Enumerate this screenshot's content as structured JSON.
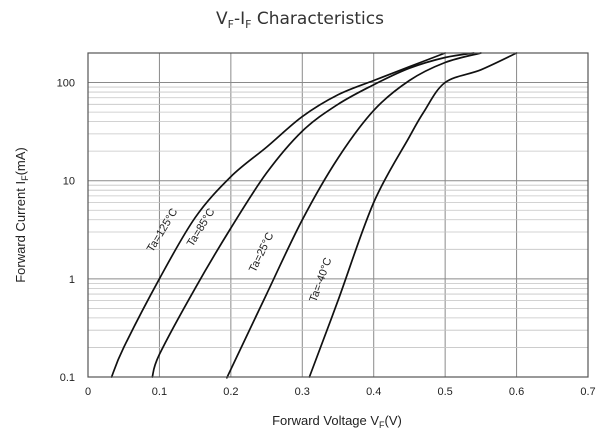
{
  "chart_data": {
    "type": "line",
    "title": {
      "main": "V",
      "sub1": "F",
      "dash": "-I",
      "sub2": "F",
      "rest": " Characteristics"
    },
    "xlabel": {
      "main": "Forward Voltage  V",
      "sub": "F",
      "rest": "(V)"
    },
    "ylabel": {
      "main": "Forward Current  I",
      "sub": "F",
      "rest": "(mA)"
    },
    "x_scale": "linear",
    "y_scale": "log",
    "xlim": [
      0,
      0.7
    ],
    "ylim": [
      0.1,
      200
    ],
    "x_ticks": [
      0,
      0.1,
      0.2,
      0.3,
      0.4,
      0.5,
      0.6,
      0.7
    ],
    "x_tick_labels": [
      "0",
      "0.1",
      "0.2",
      "0.3",
      "0.4",
      "0.5",
      "0.6",
      "0.7"
    ],
    "y_ticks": [
      0.1,
      1,
      10,
      100
    ],
    "y_tick_labels": [
      "0.1",
      "1",
      "10",
      "100"
    ],
    "grid": true,
    "colors": {
      "curve": "#111111",
      "grid_major": "#8a8a8a",
      "grid_minor": "#c4c4c4",
      "border": "#555555"
    },
    "series": [
      {
        "name": "Ta=125°C",
        "label_prefix": "Ta=125",
        "label_unit": "°C",
        "x": [
          0.033,
          0.05,
          0.1,
          0.15,
          0.2,
          0.25,
          0.3,
          0.35,
          0.4,
          0.45,
          0.5
        ],
        "y": [
          0.1,
          0.2,
          1,
          4.2,
          11,
          22,
          45,
          75,
          105,
          145,
          200
        ]
      },
      {
        "name": "Ta=85°C",
        "label_prefix": "Ta=85",
        "label_unit": "°C",
        "x": [
          0.09,
          0.1,
          0.15,
          0.2,
          0.25,
          0.3,
          0.35,
          0.4,
          0.45,
          0.5,
          0.54
        ],
        "y": [
          0.1,
          0.17,
          0.8,
          3.3,
          12,
          32,
          60,
          95,
          140,
          180,
          200
        ]
      },
      {
        "name": "Ta=25°C",
        "label_prefix": "Ta=25",
        "label_unit": "°C",
        "x": [
          0.195,
          0.2,
          0.25,
          0.3,
          0.35,
          0.4,
          0.45,
          0.5,
          0.55
        ],
        "y": [
          0.1,
          0.12,
          0.7,
          4,
          17,
          52,
          105,
          160,
          200
        ]
      },
      {
        "name": "Ta=-40°C",
        "label_prefix": "Ta=-40",
        "label_unit": "°C",
        "x": [
          0.31,
          0.35,
          0.4,
          0.45,
          0.47,
          0.5,
          0.55,
          0.6
        ],
        "y": [
          0.1,
          0.6,
          6,
          28,
          50,
          100,
          135,
          200
        ]
      }
    ]
  }
}
